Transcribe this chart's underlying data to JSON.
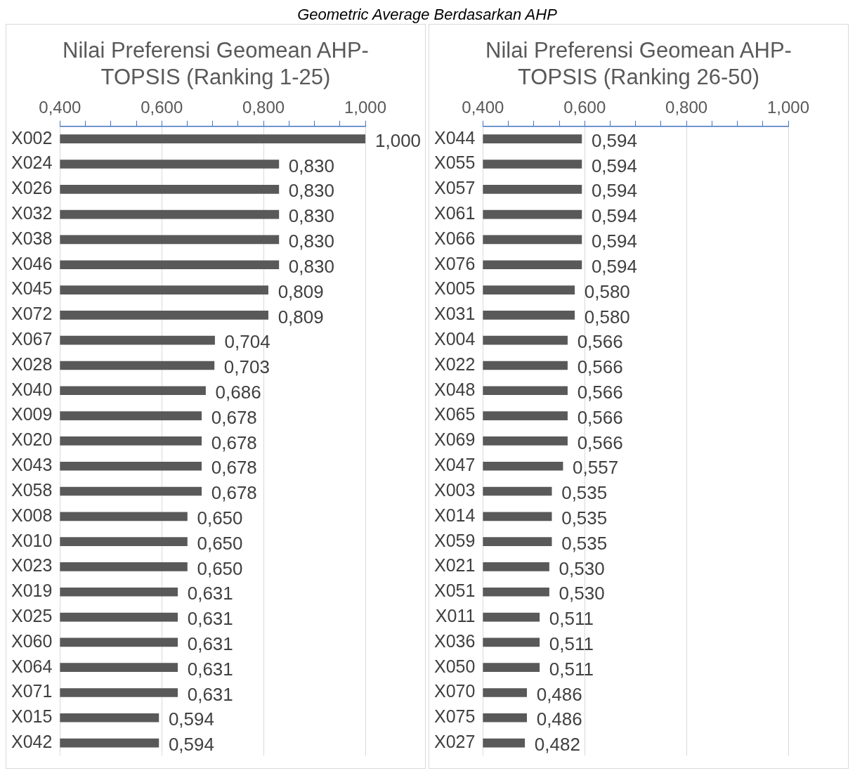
{
  "chart_data": [
    {
      "type": "bar",
      "orientation": "horizontal",
      "title": "Nilai Preferensi Geomean AHP-TOPSIS (Ranking 1-25)",
      "annotations": [
        "Geometric Average Berdasarkan AHP"
      ],
      "categories": [
        "X002",
        "X024",
        "X026",
        "X032",
        "X038",
        "X046",
        "X045",
        "X072",
        "X067",
        "X028",
        "X040",
        "X009",
        "X020",
        "X043",
        "X058",
        "X008",
        "X010",
        "X023",
        "X019",
        "X025",
        "X060",
        "X064",
        "X071",
        "X015",
        "X042"
      ],
      "values": [
        1.0,
        0.83,
        0.83,
        0.83,
        0.83,
        0.83,
        0.809,
        0.809,
        0.704,
        0.703,
        0.686,
        0.678,
        0.678,
        0.678,
        0.678,
        0.65,
        0.65,
        0.65,
        0.631,
        0.631,
        0.631,
        0.631,
        0.631,
        0.594,
        0.594
      ],
      "value_labels": [
        "1,000",
        "0,830",
        "0,830",
        "0,830",
        "0,830",
        "0,830",
        "0,809",
        "0,809",
        "0,704",
        "0,703",
        "0,686",
        "0,678",
        "0,678",
        "0,678",
        "0,678",
        "0,650",
        "0,650",
        "0,650",
        "0,631",
        "0,631",
        "0,631",
        "0,631",
        "0,631",
        "0,594",
        "0,594"
      ],
      "color": "#595959",
      "xlim": [
        0.4,
        1.0
      ],
      "xticks": [
        {
          "value": 0.4,
          "label": "0,400"
        },
        {
          "value": 0.45,
          "label": null
        },
        {
          "value": 0.5,
          "label": null
        },
        {
          "value": 0.55,
          "label": null
        },
        {
          "value": 0.6,
          "label": "0,600"
        },
        {
          "value": 0.65,
          "label": null
        },
        {
          "value": 0.7,
          "label": null
        },
        {
          "value": 0.75,
          "label": null
        },
        {
          "value": 0.8,
          "label": "0,800"
        },
        {
          "value": 0.85,
          "label": null
        },
        {
          "value": 0.9,
          "label": null
        },
        {
          "value": 0.95,
          "label": null
        },
        {
          "value": 1.0,
          "label": "1,000"
        }
      ],
      "grid": "x",
      "legend": false
    },
    {
      "type": "bar",
      "orientation": "horizontal",
      "title": "Nilai Preferensi Geomean AHP-TOPSIS (Ranking 26-50)",
      "categories": [
        "X044",
        "X055",
        "X057",
        "X061",
        "X066",
        "X076",
        "X005",
        "X031",
        "X004",
        "X022",
        "X048",
        "X065",
        "X069",
        "X047",
        "X003",
        "X014",
        "X059",
        "X021",
        "X051",
        "X011",
        "X036",
        "X050",
        "X070",
        "X075",
        "X027"
      ],
      "values": [
        0.594,
        0.594,
        0.594,
        0.594,
        0.594,
        0.594,
        0.58,
        0.58,
        0.566,
        0.566,
        0.566,
        0.566,
        0.566,
        0.557,
        0.535,
        0.535,
        0.535,
        0.53,
        0.53,
        0.511,
        0.511,
        0.511,
        0.486,
        0.486,
        0.482
      ],
      "value_labels": [
        "0,594",
        "0,594",
        "0,594",
        "0,594",
        "0,594",
        "0,594",
        "0,580",
        "0,580",
        "0,566",
        "0,566",
        "0,566",
        "0,566",
        "0,566",
        "0,557",
        "0,535",
        "0,535",
        "0,535",
        "0,530",
        "0,530",
        "0,511",
        "0,511",
        "0,511",
        "0,486",
        "0,486",
        "0,482"
      ],
      "color": "#595959",
      "xlim": [
        0.4,
        1.0
      ],
      "xticks": [
        {
          "value": 0.4,
          "label": "0,400"
        },
        {
          "value": 0.45,
          "label": null
        },
        {
          "value": 0.5,
          "label": null
        },
        {
          "value": 0.55,
          "label": null
        },
        {
          "value": 0.6,
          "label": "0,600"
        },
        {
          "value": 0.65,
          "label": null
        },
        {
          "value": 0.7,
          "label": null
        },
        {
          "value": 0.75,
          "label": null
        },
        {
          "value": 0.8,
          "label": "0,800"
        },
        {
          "value": 0.85,
          "label": null
        },
        {
          "value": 0.9,
          "label": null
        },
        {
          "value": 0.95,
          "label": null
        },
        {
          "value": 1.0,
          "label": "1,000"
        }
      ],
      "grid": "x",
      "legend": false
    }
  ]
}
